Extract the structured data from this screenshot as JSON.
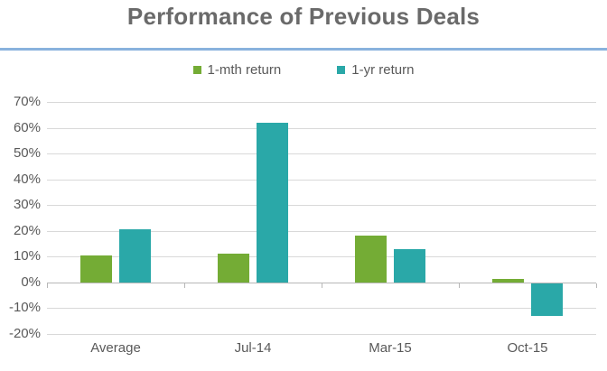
{
  "title": "Performance of Previous Deals",
  "colors": {
    "title_text": "#6a6a6a",
    "divider_blue": "#89b2dd",
    "gridline": "#d9d9d9",
    "axis_line": "#b7b7b7",
    "axis_text": "#595959",
    "series_1mth": "#74ac35",
    "series_1yr": "#2aa8a8"
  },
  "legend": {
    "items": [
      {
        "label": "1-mth return",
        "color": "#74ac35"
      },
      {
        "label": "1-yr return",
        "color": "#2aa8a8"
      }
    ]
  },
  "chart_data": {
    "type": "bar",
    "title": "Performance of Previous Deals",
    "categories": [
      "Average",
      "Jul-14",
      "Mar-15",
      "Oct-15"
    ],
    "series": [
      {
        "name": "1-mth return",
        "color": "#74ac35",
        "values": [
          10.5,
          11,
          18,
          1.5
        ]
      },
      {
        "name": "1-yr return",
        "color": "#2aa8a8",
        "values": [
          20.5,
          62,
          13,
          -13
        ]
      }
    ],
    "xlabel": "",
    "ylabel": "",
    "ylim": [
      -20,
      70
    ],
    "ytick_step": 10,
    "ytick_format": "percent",
    "ytick_labels": [
      "70%",
      "60%",
      "50%",
      "40%",
      "30%",
      "20%",
      "10%",
      "0%",
      "-10%",
      "-20%"
    ],
    "grid": true,
    "legend_position": "top"
  }
}
